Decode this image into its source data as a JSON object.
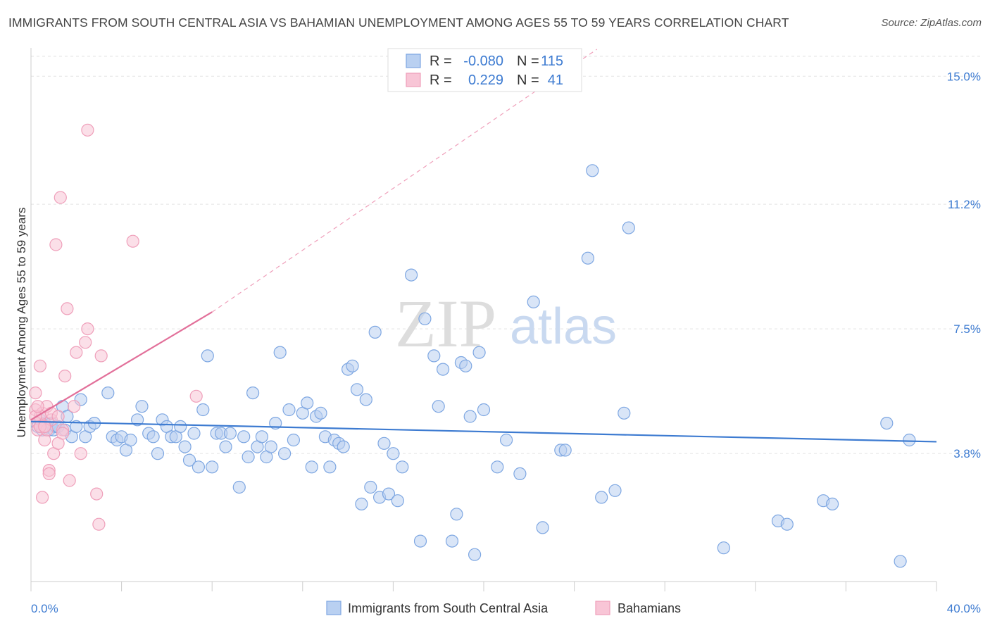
{
  "title": "IMMIGRANTS FROM SOUTH CENTRAL ASIA VS BAHAMIAN UNEMPLOYMENT AMONG AGES 55 TO 59 YEARS CORRELATION CHART",
  "source": "Source: ZipAtlas.com",
  "watermark": {
    "zip": "ZIP",
    "atlas": "atlas"
  },
  "colors": {
    "blue": "#3d7bd1",
    "blue_fill": "#b9d0f1",
    "blue_stroke": "#7ea7e2",
    "pink": "#e2709a",
    "pink_fill": "#f8c5d6",
    "pink_stroke": "#ef9fba",
    "grid": "#e3e3e3"
  },
  "legend_top": {
    "rows": [
      {
        "r_label": "R =",
        "r_value": "-0.080",
        "n_label": "N =",
        "n_value": "115"
      },
      {
        "r_label": "R =",
        "r_value": "0.229",
        "n_label": "N =",
        "n_value": "41"
      }
    ]
  },
  "chart_data": {
    "type": "scatter",
    "title": "IMMIGRANTS FROM SOUTH CENTRAL ASIA VS BAHAMIAN UNEMPLOYMENT AMONG AGES 55 TO 59 YEARS CORRELATION CHART",
    "xlabel": "",
    "ylabel": "Unemployment Among Ages 55 to 59 years",
    "xlim": [
      0,
      40
    ],
    "ylim": [
      0,
      15.8
    ],
    "x_tick_labels": [
      {
        "value": 0,
        "label": "0.0%"
      },
      {
        "value": 40,
        "label": "40.0%"
      }
    ],
    "y_tick_labels": [
      {
        "value": 3.8,
        "label": "3.8%"
      },
      {
        "value": 7.5,
        "label": "7.5%"
      },
      {
        "value": 11.2,
        "label": "11.2%"
      },
      {
        "value": 15.0,
        "label": "15.0%"
      }
    ],
    "legend": [
      "Immigrants from South Central Asia",
      "Bahamians"
    ],
    "series": [
      {
        "name": "Immigrants from South Central Asia",
        "color": "blue",
        "trend": {
          "x0": 0,
          "y0": 4.75,
          "x1": 40,
          "y1": 4.15
        },
        "points": [
          [
            0.3,
            4.6
          ],
          [
            0.4,
            4.8
          ],
          [
            0.5,
            4.5
          ],
          [
            0.6,
            4.7
          ],
          [
            0.7,
            4.6
          ],
          [
            0.8,
            4.5
          ],
          [
            0.9,
            4.7
          ],
          [
            1.0,
            4.5
          ],
          [
            1.1,
            4.6
          ],
          [
            1.2,
            4.6
          ],
          [
            1.4,
            5.2
          ],
          [
            1.5,
            4.5
          ],
          [
            1.6,
            4.9
          ],
          [
            1.8,
            4.3
          ],
          [
            2.0,
            4.6
          ],
          [
            2.2,
            5.4
          ],
          [
            2.4,
            4.3
          ],
          [
            2.6,
            4.6
          ],
          [
            2.8,
            4.7
          ],
          [
            3.4,
            5.6
          ],
          [
            3.6,
            4.3
          ],
          [
            3.8,
            4.2
          ],
          [
            4.0,
            4.3
          ],
          [
            4.2,
            3.9
          ],
          [
            4.4,
            4.2
          ],
          [
            4.7,
            4.8
          ],
          [
            4.9,
            5.2
          ],
          [
            5.2,
            4.4
          ],
          [
            5.4,
            4.3
          ],
          [
            5.6,
            3.8
          ],
          [
            5.8,
            4.8
          ],
          [
            6.0,
            4.6
          ],
          [
            6.2,
            4.3
          ],
          [
            6.4,
            4.3
          ],
          [
            6.6,
            4.6
          ],
          [
            6.8,
            4.0
          ],
          [
            7.0,
            3.6
          ],
          [
            7.2,
            4.4
          ],
          [
            7.4,
            3.4
          ],
          [
            7.6,
            5.1
          ],
          [
            7.8,
            6.7
          ],
          [
            8.0,
            3.4
          ],
          [
            8.2,
            4.4
          ],
          [
            8.4,
            4.4
          ],
          [
            8.6,
            4.0
          ],
          [
            8.8,
            4.4
          ],
          [
            9.2,
            2.8
          ],
          [
            9.4,
            4.3
          ],
          [
            9.6,
            3.7
          ],
          [
            9.8,
            5.6
          ],
          [
            10.0,
            4.0
          ],
          [
            10.2,
            4.3
          ],
          [
            10.4,
            3.7
          ],
          [
            10.6,
            4.0
          ],
          [
            10.8,
            4.7
          ],
          [
            11.0,
            6.8
          ],
          [
            11.2,
            3.8
          ],
          [
            11.4,
            5.1
          ],
          [
            11.6,
            4.2
          ],
          [
            12.0,
            5.0
          ],
          [
            12.2,
            5.3
          ],
          [
            12.4,
            3.4
          ],
          [
            12.6,
            4.9
          ],
          [
            12.8,
            5.0
          ],
          [
            13.0,
            4.3
          ],
          [
            13.2,
            3.4
          ],
          [
            13.4,
            4.2
          ],
          [
            13.6,
            4.1
          ],
          [
            13.8,
            4.0
          ],
          [
            14.0,
            6.3
          ],
          [
            14.2,
            6.4
          ],
          [
            14.4,
            5.7
          ],
          [
            14.6,
            2.3
          ],
          [
            14.8,
            5.4
          ],
          [
            15.0,
            2.8
          ],
          [
            15.2,
            7.4
          ],
          [
            15.4,
            2.5
          ],
          [
            15.6,
            4.1
          ],
          [
            15.8,
            2.6
          ],
          [
            16.0,
            3.8
          ],
          [
            16.2,
            2.4
          ],
          [
            16.4,
            3.4
          ],
          [
            16.8,
            9.1
          ],
          [
            17.2,
            1.2
          ],
          [
            17.4,
            7.8
          ],
          [
            17.8,
            6.7
          ],
          [
            18.0,
            5.2
          ],
          [
            18.2,
            6.3
          ],
          [
            18.6,
            1.2
          ],
          [
            18.8,
            2.0
          ],
          [
            19.0,
            6.5
          ],
          [
            19.2,
            6.4
          ],
          [
            19.4,
            4.9
          ],
          [
            19.6,
            0.8
          ],
          [
            19.8,
            6.8
          ],
          [
            20.0,
            5.1
          ],
          [
            20.6,
            3.4
          ],
          [
            21.0,
            4.2
          ],
          [
            21.6,
            3.2
          ],
          [
            22.2,
            8.3
          ],
          [
            22.6,
            1.6
          ],
          [
            23.4,
            3.9
          ],
          [
            23.6,
            3.9
          ],
          [
            24.6,
            9.6
          ],
          [
            24.8,
            12.2
          ],
          [
            25.2,
            2.5
          ],
          [
            25.8,
            2.7
          ],
          [
            26.2,
            5.0
          ],
          [
            26.4,
            10.5
          ],
          [
            30.6,
            1.0
          ],
          [
            33.0,
            1.8
          ],
          [
            33.4,
            1.7
          ],
          [
            35.0,
            2.4
          ],
          [
            35.4,
            2.3
          ],
          [
            37.8,
            4.7
          ],
          [
            38.4,
            0.6
          ],
          [
            38.8,
            4.2
          ]
        ]
      },
      {
        "name": "Bahamians",
        "color": "pink",
        "trend": {
          "x0": 0,
          "y0": 4.8,
          "x1": 8,
          "y1": 8.0,
          "dash_to_x": 25,
          "dash_to_y": 15.8
        },
        "points": [
          [
            0.2,
            5.1
          ],
          [
            0.2,
            5.6
          ],
          [
            0.3,
            4.7
          ],
          [
            0.3,
            4.5
          ],
          [
            0.4,
            6.4
          ],
          [
            0.4,
            4.9
          ],
          [
            0.5,
            5.0
          ],
          [
            0.5,
            2.5
          ],
          [
            0.6,
            4.6
          ],
          [
            0.6,
            4.2
          ],
          [
            0.7,
            5.2
          ],
          [
            0.7,
            4.5
          ],
          [
            0.8,
            3.3
          ],
          [
            0.8,
            3.2
          ],
          [
            0.9,
            4.8
          ],
          [
            0.9,
            5.0
          ],
          [
            1.0,
            3.8
          ],
          [
            1.1,
            10.0
          ],
          [
            1.2,
            4.9
          ],
          [
            1.2,
            4.1
          ],
          [
            1.3,
            11.4
          ],
          [
            1.4,
            4.5
          ],
          [
            1.5,
            6.1
          ],
          [
            1.6,
            8.1
          ],
          [
            1.7,
            3.0
          ],
          [
            1.9,
            5.2
          ],
          [
            2.0,
            6.8
          ],
          [
            2.2,
            3.8
          ],
          [
            2.4,
            7.1
          ],
          [
            2.5,
            7.5
          ],
          [
            2.5,
            13.4
          ],
          [
            2.9,
            2.6
          ],
          [
            3.0,
            1.7
          ],
          [
            3.1,
            6.7
          ],
          [
            4.5,
            10.1
          ],
          [
            7.3,
            5.5
          ],
          [
            0.2,
            4.9
          ],
          [
            0.3,
            5.2
          ],
          [
            0.4,
            4.6
          ],
          [
            1.4,
            4.4
          ],
          [
            0.6,
            4.6
          ]
        ]
      }
    ]
  }
}
